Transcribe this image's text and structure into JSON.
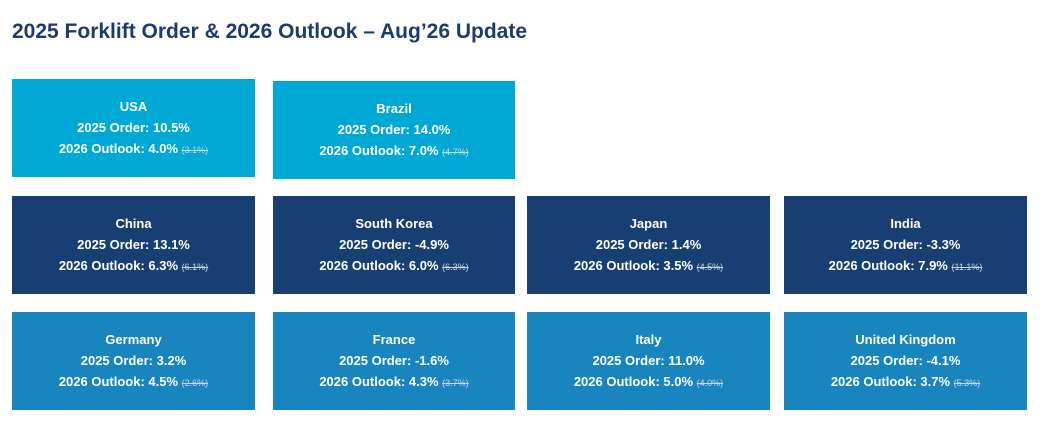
{
  "title": "2025 Forklift Order & 2026 Outlook – Aug’26 Update",
  "colors": {
    "title": "#1b3c6e",
    "row1": "#00a8d6",
    "row2": "#173f72",
    "row3": "#1885be"
  },
  "cards": [
    {
      "country": "USA",
      "order_label": "2025 Order:",
      "order": "10.5%",
      "outlook_label": "2026 Outlook:",
      "outlook": "4.0%",
      "previous": "(3.1%)"
    },
    {
      "country": "Brazil",
      "order_label": "2025 Order:",
      "order": "14.0%",
      "outlook_label": "2026 Outlook:",
      "outlook": "7.0%",
      "previous": "(4.7%)"
    },
    {
      "country": "China",
      "order_label": "2025 Order:",
      "order": "13.1%",
      "outlook_label": "2026 Outlook:",
      "outlook": "6.3%",
      "previous": "(6.1%)"
    },
    {
      "country": "South Korea",
      "order_label": "2025 Order:",
      "order": "-4.9%",
      "outlook_label": "2026 Outlook:",
      "outlook": "6.0%",
      "previous": "(6.3%)"
    },
    {
      "country": "Japan",
      "order_label": "2025 Order:",
      "order": "1.4%",
      "outlook_label": "2026 Outlook:",
      "outlook": "3.5%",
      "previous": "(4.5%)"
    },
    {
      "country": "India",
      "order_label": "2025 Order:",
      "order": "-3.3%",
      "outlook_label": "2026 Outlook:",
      "outlook": "7.9%",
      "previous": "(11.1%)"
    },
    {
      "country": "Germany",
      "order_label": "2025 Order:",
      "order": "3.2%",
      "outlook_label": "2026 Outlook:",
      "outlook": "4.5%",
      "previous": "(2.6%)"
    },
    {
      "country": "France",
      "order_label": "2025 Order:",
      "order": "-1.6%",
      "outlook_label": "2026 Outlook:",
      "outlook": "4.3%",
      "previous": "(3.7%)"
    },
    {
      "country": "Italy",
      "order_label": "2025 Order:",
      "order": "11.0%",
      "outlook_label": "2026 Outlook:",
      "outlook": "5.0%",
      "previous": "(4.0%)"
    },
    {
      "country": "United Kingdom",
      "order_label": "2025 Order:",
      "order": "-4.1%",
      "outlook_label": "2026 Outlook:",
      "outlook": "3.7%",
      "previous": "(5.3%)"
    }
  ]
}
